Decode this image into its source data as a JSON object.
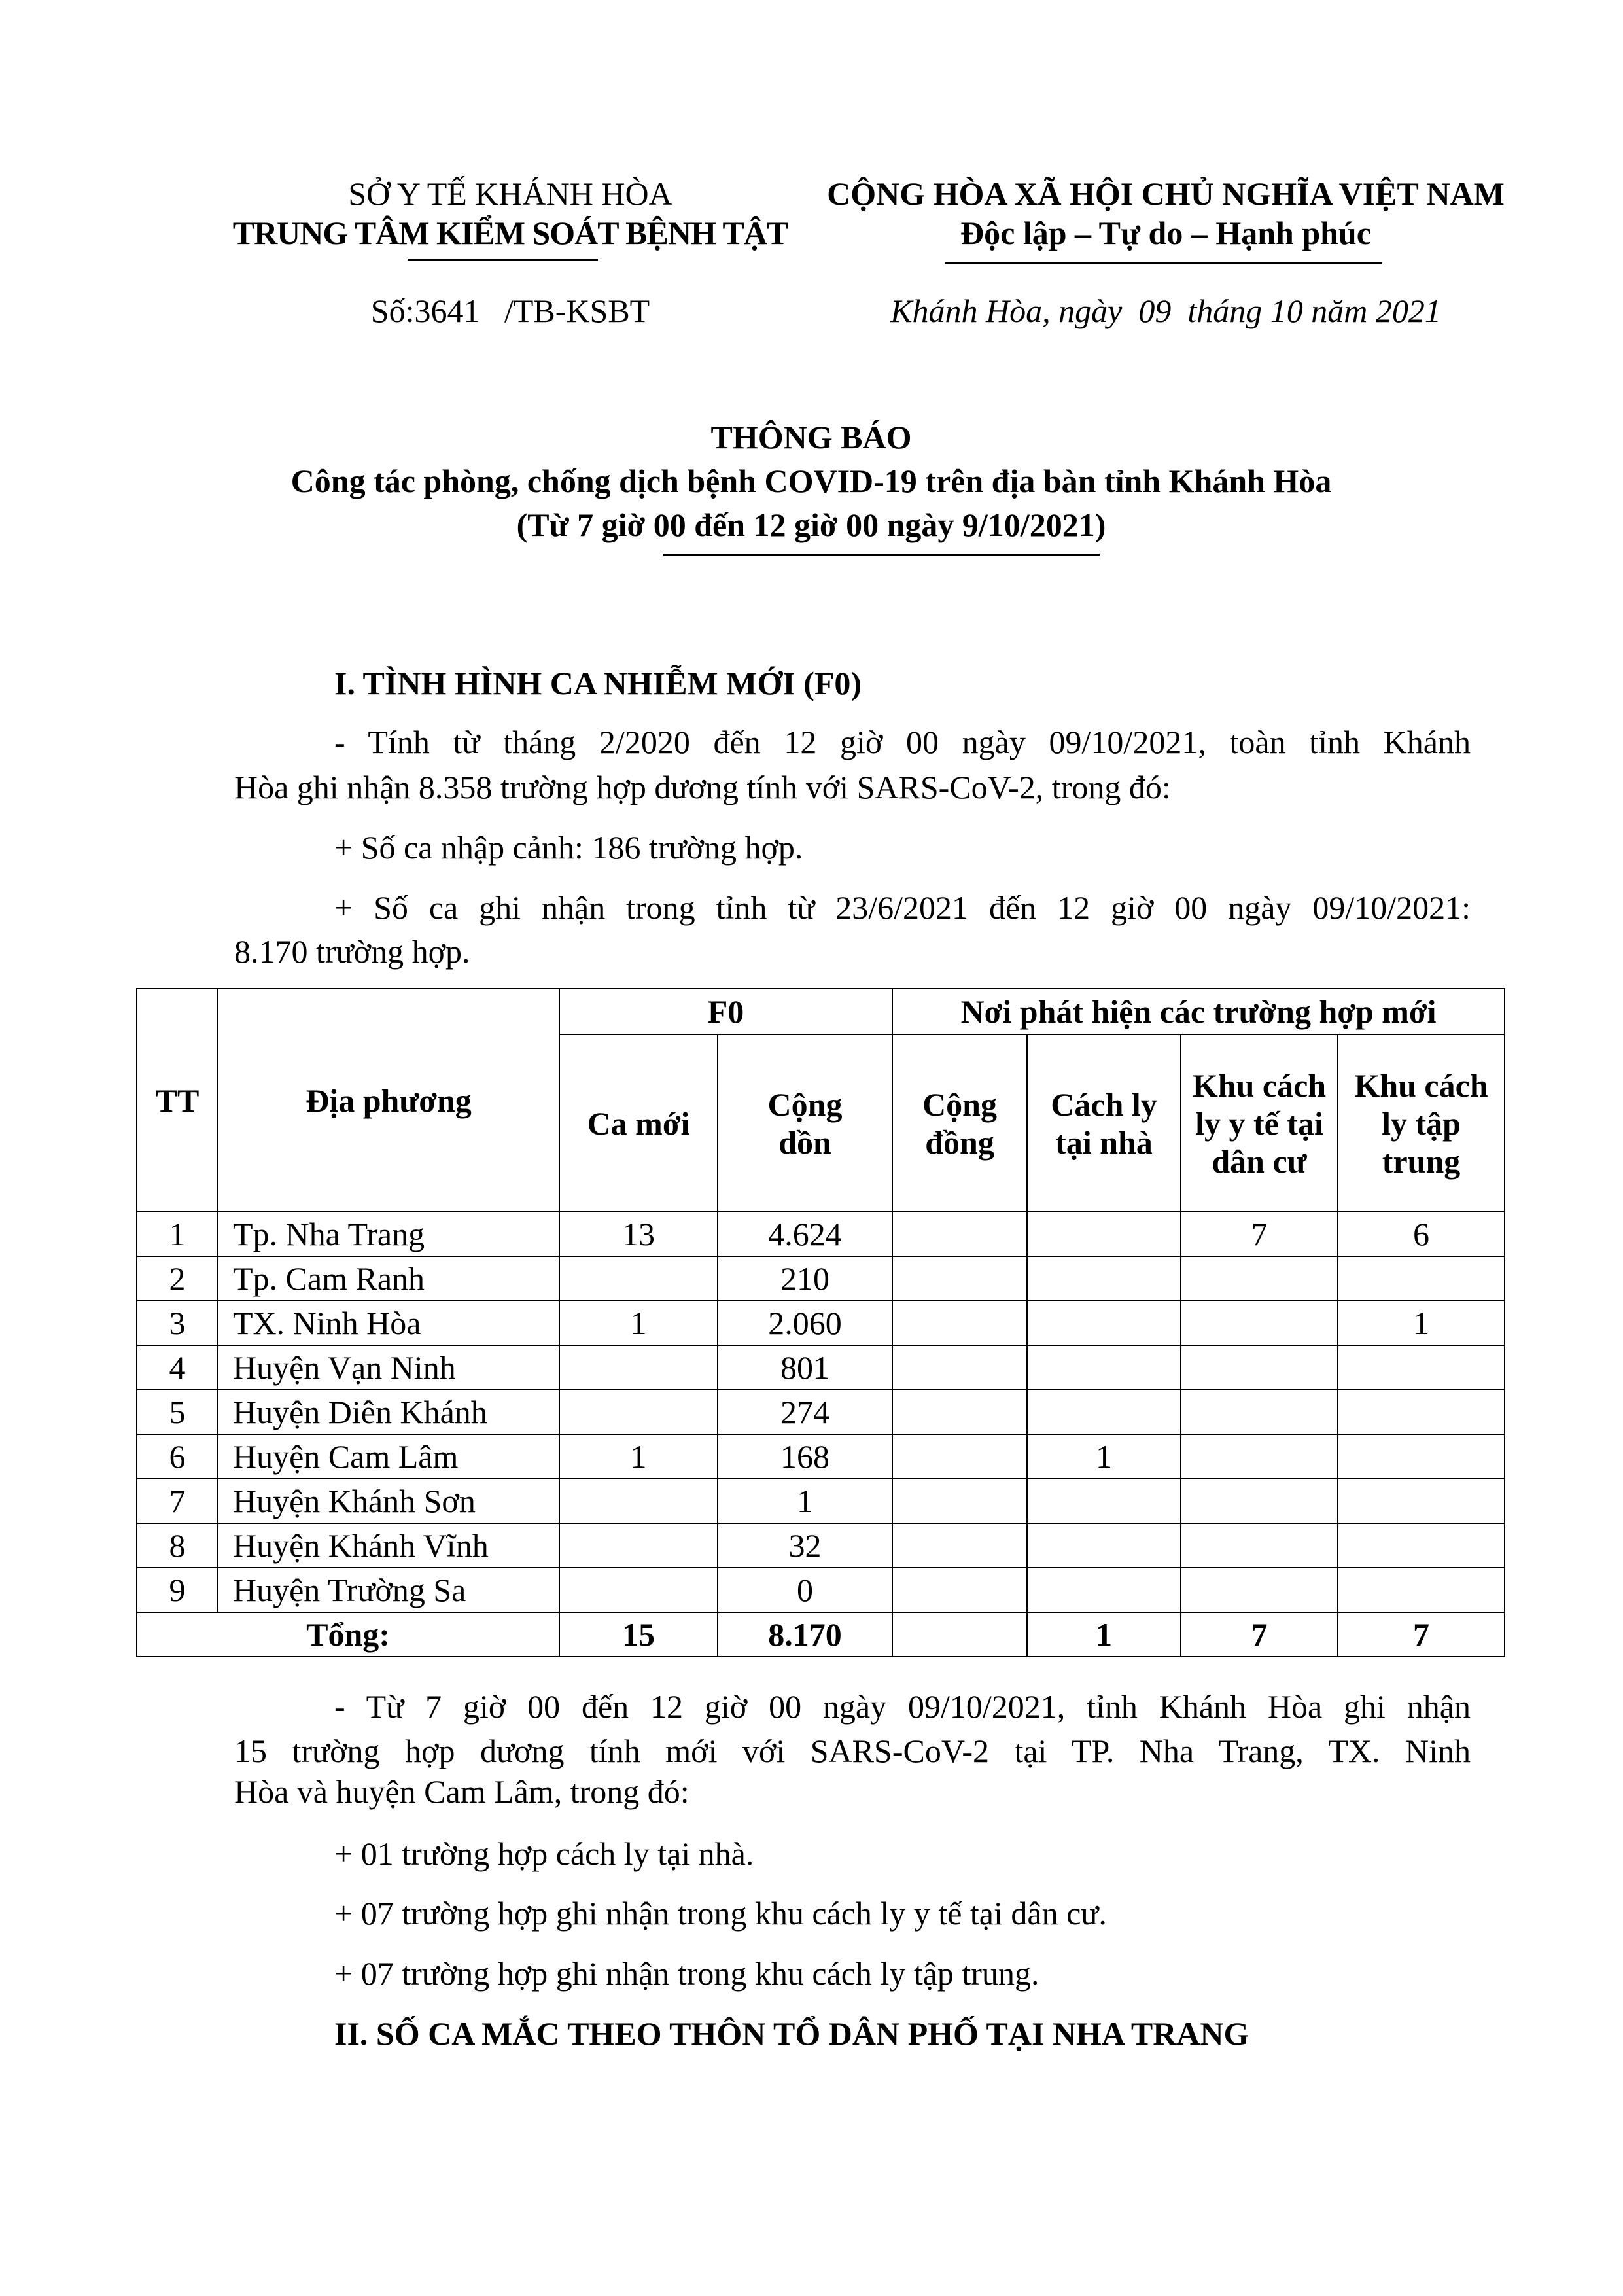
{
  "header": {
    "left_line1": "SỞ Y TẾ KHÁNH HÒA",
    "left_line2": "TRUNG TÂM KIỂM SOÁT BỆNH TẬT",
    "right_line1": "CỘNG HÒA XÃ HỘI CHỦ NGHĨA VIỆT NAM",
    "right_line2": "Độc lập – Tự do – Hạnh phúc",
    "doc_number": "Số:3641   /TB-KSBT",
    "place_date": "Khánh Hòa, ngày  09  tháng 10 năm 2021"
  },
  "title": {
    "main": "THÔNG BÁO",
    "subtitle": "Công tác phòng, chống dịch bệnh COVID-19 trên địa bàn tỉnh Khánh Hòa",
    "period": "(Từ 7 giờ 00 đến 12 giờ 00 ngày 9/10/2021)"
  },
  "section1": {
    "heading": "I. TÌNH HÌNH CA NHIỄM MỚI (F0)",
    "p1_line1": "- Tính từ tháng 2/2020 đến 12 giờ 00 ngày 09/10/2021, toàn tỉnh Khánh",
    "p1_line2": "Hòa ghi nhận 8.358 trường hợp dương tính với SARS-CoV-2, trong đó:",
    "p2": "+ Số ca nhập cảnh: 186 trường hợp.",
    "p3_line1": "+ Số ca ghi nhận trong tỉnh từ 23/6/2021 đến 12 giờ 00 ngày 09/10/2021:",
    "p3_line2": "8.170 trường hợp."
  },
  "table": {
    "headers": {
      "tt": "TT",
      "locality": "Địa phương",
      "f0": "F0",
      "new_cases": "Ca mới",
      "cumulative": "Cộng dồn",
      "detected_group": "Nơi phát hiện các trường hợp mới",
      "community": "Cộng đồng",
      "home_isolation": "Cách ly tại nhà",
      "residential_quarantine": "Khu cách ly y tế tại dân cư",
      "central_quarantine": "Khu cách ly tập trung"
    },
    "rows": [
      {
        "tt": "1",
        "name": "Tp. Nha Trang",
        "new": "13",
        "cum": "4.624",
        "community": "",
        "home": "",
        "resid": "7",
        "central": "6"
      },
      {
        "tt": "2",
        "name": "Tp. Cam Ranh",
        "new": "",
        "cum": "210",
        "community": "",
        "home": "",
        "resid": "",
        "central": ""
      },
      {
        "tt": "3",
        "name": "TX. Ninh Hòa",
        "new": "1",
        "cum": "2.060",
        "community": "",
        "home": "",
        "resid": "",
        "central": "1"
      },
      {
        "tt": "4",
        "name": "Huyện Vạn Ninh",
        "new": "",
        "cum": "801",
        "community": "",
        "home": "",
        "resid": "",
        "central": ""
      },
      {
        "tt": "5",
        "name": "Huyện Diên Khánh",
        "new": "",
        "cum": "274",
        "community": "",
        "home": "",
        "resid": "",
        "central": ""
      },
      {
        "tt": "6",
        "name": "Huyện Cam Lâm",
        "new": "1",
        "cum": "168",
        "community": "",
        "home": "1",
        "resid": "",
        "central": ""
      },
      {
        "tt": "7",
        "name": "Huyện Khánh Sơn",
        "new": "",
        "cum": "1",
        "community": "",
        "home": "",
        "resid": "",
        "central": ""
      },
      {
        "tt": "8",
        "name": "Huyện Khánh Vĩnh",
        "new": "",
        "cum": "32",
        "community": "",
        "home": "",
        "resid": "",
        "central": ""
      },
      {
        "tt": "9",
        "name": "Huyện Trường Sa",
        "new": "",
        "cum": "0",
        "community": "",
        "home": "",
        "resid": "",
        "central": ""
      }
    ],
    "total": {
      "label": "Tổng:",
      "new": "15",
      "cum": "8.170",
      "community": "",
      "home": "1",
      "resid": "7",
      "central": "7"
    }
  },
  "after_table": {
    "p1_line1": "- Từ 7 giờ 00 đến 12 giờ 00 ngày 09/10/2021, tỉnh Khánh Hòa ghi nhận",
    "p1_line2": "15 trường hợp dương tính mới với SARS-CoV-2 tại TP. Nha Trang, TX. Ninh",
    "p1_line3": "Hòa và huyện Cam Lâm, trong đó:",
    "b1": "+ 01 trường hợp cách ly tại nhà.",
    "b2": "+ 07 trường hợp ghi nhận trong khu cách ly y tế tại dân cư.",
    "b3": "+ 07 trường hợp ghi nhận trong khu cách ly tập trung."
  },
  "section2": {
    "heading": "II. SỐ CA MẮC THEO THÔN TỔ DÂN PHỐ TẠI NHA TRANG"
  }
}
